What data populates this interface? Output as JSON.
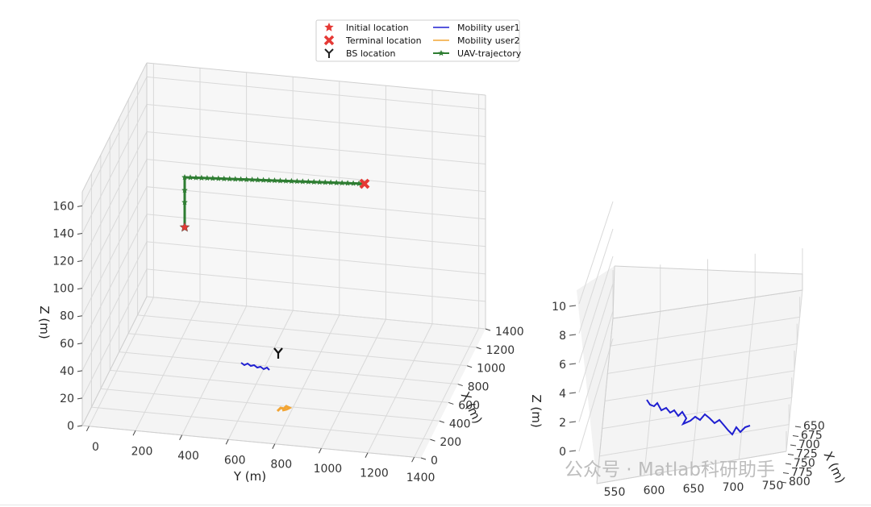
{
  "legend": [
    {
      "label": "Initial location",
      "color": "#e53935",
      "marker": "star"
    },
    {
      "label": "Mobility user1",
      "color": "#1f1fd1",
      "marker": "line"
    },
    {
      "label": "Terminal location",
      "color": "#e53935",
      "marker": "x"
    },
    {
      "label": "Mobility user2",
      "color": "#f2a535",
      "marker": "line"
    },
    {
      "label": "BS location",
      "color": "#222222",
      "marker": "tri-y"
    },
    {
      "label": "UAV-trajectory",
      "color": "#2e7d32",
      "marker": "line-star"
    }
  ],
  "watermark": "公众号 · Matlab科研助手",
  "chart_data": [
    {
      "type": "line3d",
      "title": "",
      "xlabel": "X (m)",
      "ylabel": "Y (m)",
      "zlabel": "Z (m)",
      "x_ticks": [
        "0",
        "200",
        "400",
        "600",
        "800",
        "1000",
        "1200",
        "1400"
      ],
      "y_ticks": [
        "0",
        "200",
        "400",
        "600",
        "800",
        "1000",
        "1200",
        "1400"
      ],
      "z_ticks": [
        "0",
        "20",
        "40",
        "60",
        "80",
        "100",
        "120",
        "140",
        "160"
      ],
      "xlim": [
        0,
        1400
      ],
      "ylim": [
        0,
        1500
      ],
      "zlim": [
        0,
        180
      ],
      "grid": true,
      "initial_location": {
        "x": 500,
        "y": 500,
        "z": 150
      },
      "terminal_location": {
        "x": 700,
        "y": 1400,
        "z": 165
      },
      "bs_location": {
        "x": 500,
        "y": 900,
        "z": 0
      },
      "series": [
        {
          "name": "UAV-trajectory",
          "color": "#2e7d32",
          "points": [
            [
              500,
              500,
              150
            ],
            [
              500,
              500,
              155
            ],
            [
              500,
              500,
              160
            ],
            [
              500,
              500,
              165
            ],
            [
              520,
              580,
              165
            ],
            [
              540,
              660,
              165
            ],
            [
              560,
              740,
              165
            ],
            [
              580,
              820,
              165
            ],
            [
              600,
              900,
              165
            ],
            [
              620,
              980,
              165
            ],
            [
              640,
              1060,
              165
            ],
            [
              660,
              1140,
              165
            ],
            [
              680,
              1220,
              165
            ],
            [
              690,
              1300,
              165
            ],
            [
              700,
              1400,
              165
            ]
          ]
        },
        {
          "name": "Mobility user1",
          "color": "#1f1fd1",
          "points": [
            [
              670,
              580,
              0
            ],
            [
              675,
              600,
              0
            ],
            [
              690,
              630,
              0
            ],
            [
              700,
              660,
              0
            ],
            [
              695,
              690,
              0
            ],
            [
              700,
              720,
              0
            ],
            [
              710,
              740,
              0
            ]
          ]
        },
        {
          "name": "Mobility user2",
          "color": "#f2a535",
          "points": [
            [
              1300,
              750,
              0
            ],
            [
              1290,
              770,
              0
            ],
            [
              1300,
              790,
              0
            ],
            [
              1290,
              805,
              0
            ],
            [
              1285,
              820,
              0
            ]
          ]
        }
      ]
    },
    {
      "type": "line3d",
      "title": "",
      "xlabel": "X (m)",
      "ylabel": "",
      "zlabel": "Z (m)",
      "x_ticks": [
        "650",
        "675",
        "700",
        "725",
        "750",
        "775",
        "800"
      ],
      "y_ticks": [
        "550",
        "600",
        "650",
        "700",
        "750"
      ],
      "z_ticks": [
        "0",
        "2",
        "4",
        "6",
        "8",
        "10"
      ],
      "xlim": [
        630,
        810
      ],
      "ylim": [
        530,
        760
      ],
      "zlim": [
        0,
        10
      ],
      "grid": true,
      "series": [
        {
          "name": "Mobility user1",
          "color": "#1f1fd1",
          "points": [
            [
              640,
              560,
              0
            ],
            [
              650,
              575,
              0
            ],
            [
              655,
              590,
              0
            ],
            [
              660,
              605,
              0
            ],
            [
              670,
              620,
              0
            ],
            [
              665,
              635,
              0
            ],
            [
              675,
              650,
              0
            ],
            [
              690,
              665,
              0
            ],
            [
              700,
              680,
              0
            ],
            [
              690,
              690,
              0
            ],
            [
              705,
              705,
              0
            ],
            [
              715,
              715,
              0
            ],
            [
              725,
              725,
              0
            ],
            [
              730,
              735,
              0
            ],
            [
              720,
              745,
              0
            ]
          ]
        }
      ]
    }
  ]
}
